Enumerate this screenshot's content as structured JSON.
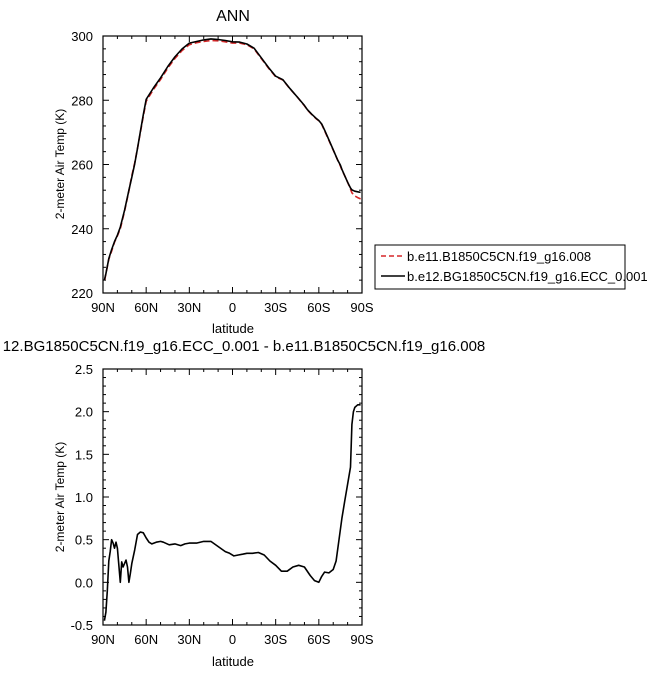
{
  "chart_data": [
    {
      "type": "line",
      "title": "ANN",
      "xlabel": "latitude",
      "ylabel": "2-meter Air Temp (K)",
      "xlim": [
        90,
        -90
      ],
      "ylim": [
        220,
        300
      ],
      "x_ticks": [
        90,
        60,
        30,
        0,
        -30,
        -60,
        -90
      ],
      "x_tick_labels": [
        "90N",
        "60N",
        "30N",
        "0",
        "30S",
        "60S",
        "90S"
      ],
      "y_ticks": [
        220,
        240,
        260,
        280,
        300
      ],
      "y_tick_labels": [
        "220",
        "240",
        "260",
        "280",
        "300"
      ],
      "legend_position": "right",
      "series": [
        {
          "name": "b.e11.B1850C5CN.f19_g16.008",
          "color": "#d62728",
          "dash": "dashed",
          "x": [
            -89,
            -87,
            -85,
            -83,
            -82,
            -80,
            -78,
            -76,
            -75,
            -73,
            -70,
            -67,
            -64,
            -62,
            -60,
            -58,
            -55,
            -52,
            -50,
            -45,
            -40,
            -35,
            -30,
            -25,
            -20,
            -15,
            -10,
            -5,
            0,
            5,
            10,
            15,
            20,
            25,
            30,
            35,
            40,
            45,
            50,
            55,
            60,
            62,
            64,
            66,
            68,
            70,
            72,
            75,
            78,
            80,
            82,
            84,
            86,
            88,
            89
          ],
          "values": [
            249.3,
            249.7,
            250.2,
            251.2,
            252.3,
            254.5,
            256.5,
            258.3,
            259.5,
            261.5,
            264.5,
            267.5,
            270.5,
            272.5,
            273.6,
            274.3,
            275.6,
            277.0,
            278.3,
            281.0,
            283.5,
            286.3,
            287.3,
            290.0,
            293.0,
            296.0,
            297.3,
            297.8,
            297.8,
            298.2,
            298.5,
            298.6,
            298.3,
            297.9,
            297.3,
            295.5,
            293.0,
            290.0,
            286.5,
            283.3,
            279.7,
            275.0,
            270.0,
            265.0,
            260.5,
            256.5,
            251.8,
            245.5,
            240.0,
            237.8,
            235.8,
            233.0,
            230.5,
            226.0,
            223.5
          ]
        },
        {
          "name": "b.e12.BG1850C5CN.f19_g16.ECC_0.001",
          "color": "#000000",
          "dash": "solid",
          "x": [
            -89,
            -87,
            -85,
            -83,
            -82,
            -80,
            -78,
            -76,
            -75,
            -73,
            -70,
            -67,
            -64,
            -62,
            -60,
            -58,
            -55,
            -52,
            -50,
            -45,
            -40,
            -35,
            -30,
            -25,
            -20,
            -15,
            -10,
            -5,
            0,
            5,
            10,
            15,
            20,
            25,
            30,
            35,
            40,
            45,
            50,
            55,
            60,
            62,
            64,
            66,
            68,
            70,
            72,
            75,
            78,
            80,
            82,
            84,
            86,
            88,
            89
          ],
          "values": [
            251.3,
            251.5,
            251.7,
            252.1,
            252.7,
            254.5,
            256.5,
            258.5,
            259.8,
            261.5,
            264.6,
            267.7,
            270.7,
            272.6,
            273.7,
            274.4,
            275.7,
            277.1,
            278.4,
            281.0,
            283.6,
            286.4,
            287.5,
            290.2,
            293.2,
            296.2,
            297.5,
            298.1,
            298.2,
            298.6,
            298.9,
            299.1,
            298.8,
            298.3,
            297.8,
            296.0,
            293.5,
            290.5,
            287.0,
            283.8,
            280.3,
            275.5,
            270.3,
            265.0,
            260.2,
            256.0,
            252.0,
            245.8,
            240.5,
            238.0,
            236.0,
            233.5,
            230.7,
            226.0,
            224.0
          ]
        }
      ]
    },
    {
      "type": "line",
      "title": "12.BG1850C5CN.f19_g16.ECC_0.001 - b.e11.B1850C5CN.f19_g16.008",
      "xlabel": "latitude",
      "ylabel": "2-meter Air Temp (K)",
      "xlim": [
        90,
        -90
      ],
      "ylim": [
        -0.5,
        2.5
      ],
      "x_ticks": [
        90,
        60,
        30,
        0,
        -30,
        -60,
        -90
      ],
      "x_tick_labels": [
        "90N",
        "60N",
        "30N",
        "0",
        "30S",
        "60S",
        "90S"
      ],
      "y_ticks": [
        -0.5,
        0,
        0.5,
        1,
        1.5,
        2,
        2.5
      ],
      "y_tick_labels": [
        "-0.5",
        "0.0",
        "0.5",
        "1.0",
        "1.5",
        "2.0",
        "2.5"
      ],
      "series": [
        {
          "color": "#000000",
          "x": [
            -89,
            -87,
            -85,
            -84,
            -83,
            -82,
            -80,
            -78,
            -76,
            -74,
            -72,
            -70,
            -67,
            -64,
            -62,
            -60,
            -57,
            -54,
            -50,
            -46,
            -42,
            -38,
            -34,
            -30,
            -26,
            -22,
            -18,
            -14,
            -10,
            -7,
            -4,
            -1,
            2,
            5,
            10,
            15,
            20,
            25,
            30,
            33,
            36,
            40,
            44,
            48,
            50,
            53,
            56,
            58,
            60,
            62,
            64,
            66,
            68,
            70,
            71,
            72,
            73,
            74,
            76,
            77,
            78,
            80,
            81,
            82,
            83,
            84,
            85,
            86,
            87,
            88,
            89
          ],
          "values": [
            2.08,
            2.08,
            2.05,
            2.0,
            1.85,
            1.35,
            1.15,
            0.95,
            0.75,
            0.5,
            0.25,
            0.15,
            0.11,
            0.12,
            0.07,
            0.0,
            0.02,
            0.08,
            0.18,
            0.2,
            0.18,
            0.13,
            0.13,
            0.2,
            0.25,
            0.32,
            0.35,
            0.34,
            0.34,
            0.33,
            0.32,
            0.31,
            0.34,
            0.36,
            0.42,
            0.48,
            0.48,
            0.46,
            0.46,
            0.45,
            0.43,
            0.45,
            0.44,
            0.47,
            0.48,
            0.47,
            0.45,
            0.47,
            0.52,
            0.58,
            0.59,
            0.56,
            0.38,
            0.22,
            0.1,
            0.0,
            0.18,
            0.26,
            0.18,
            0.24,
            0.0,
            0.4,
            0.47,
            0.4,
            0.46,
            0.5,
            0.36,
            0.25,
            -0.1,
            -0.35,
            -0.45
          ]
        }
      ]
    }
  ]
}
